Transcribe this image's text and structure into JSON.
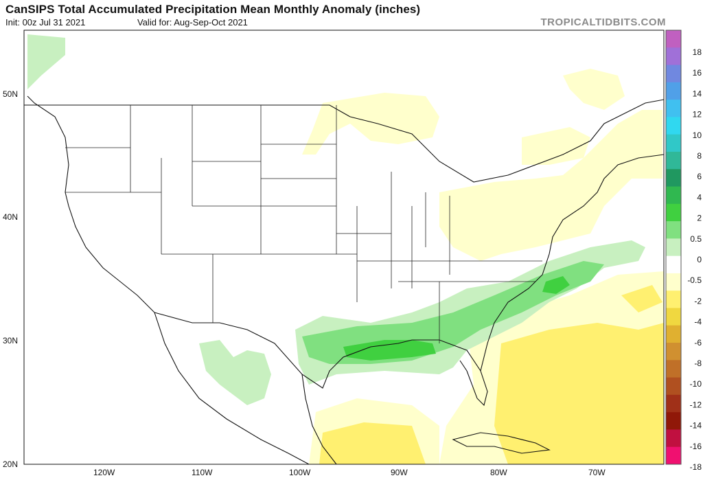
{
  "title": "CanSIPS Total Accumulated Precipitation Mean Monthly Anomaly (inches)",
  "init": "Init: 00z Jul 31 2021",
  "valid": "Valid for: Aug-Sep-Oct 2021",
  "source": "TROPICALTIDBITS.COM",
  "lat_labels": [
    "50N",
    "40N",
    "30N",
    "20N"
  ],
  "lon_labels": [
    "120W",
    "110W",
    "100W",
    "90W",
    "80W",
    "70W"
  ],
  "colorbar": {
    "labels": [
      "18",
      "14",
      "10",
      "6",
      "2",
      "0",
      "-2",
      "-6",
      "-10",
      "-14",
      "-18"
    ],
    "labels_mid": [
      "16",
      "12",
      "8",
      "4",
      "0.5",
      "-0.5",
      "-4",
      "-8",
      "-12",
      "-16"
    ],
    "colors": [
      "#c060c0",
      "#a070d8",
      "#7088e0",
      "#50a0e8",
      "#40c0f0",
      "#30d8f0",
      "#30c8c8",
      "#30b898",
      "#209860",
      "#30b850",
      "#40d040",
      "#80e080",
      "#c8f0c0",
      "#ffffff",
      "#ffffcc",
      "#fff070",
      "#f0d840",
      "#e0b030",
      "#d09030",
      "#c07028",
      "#b05020",
      "#a03018",
      "#901808",
      "#c01040",
      "#f01070"
    ],
    "annotations_note": "colored scale steps"
  },
  "legend": {
    "wet_color": "#40d040",
    "light_wet_color": "#c8f0c0",
    "dry_color": "#ffffcc",
    "moderate_dry_color": "#fff070"
  }
}
